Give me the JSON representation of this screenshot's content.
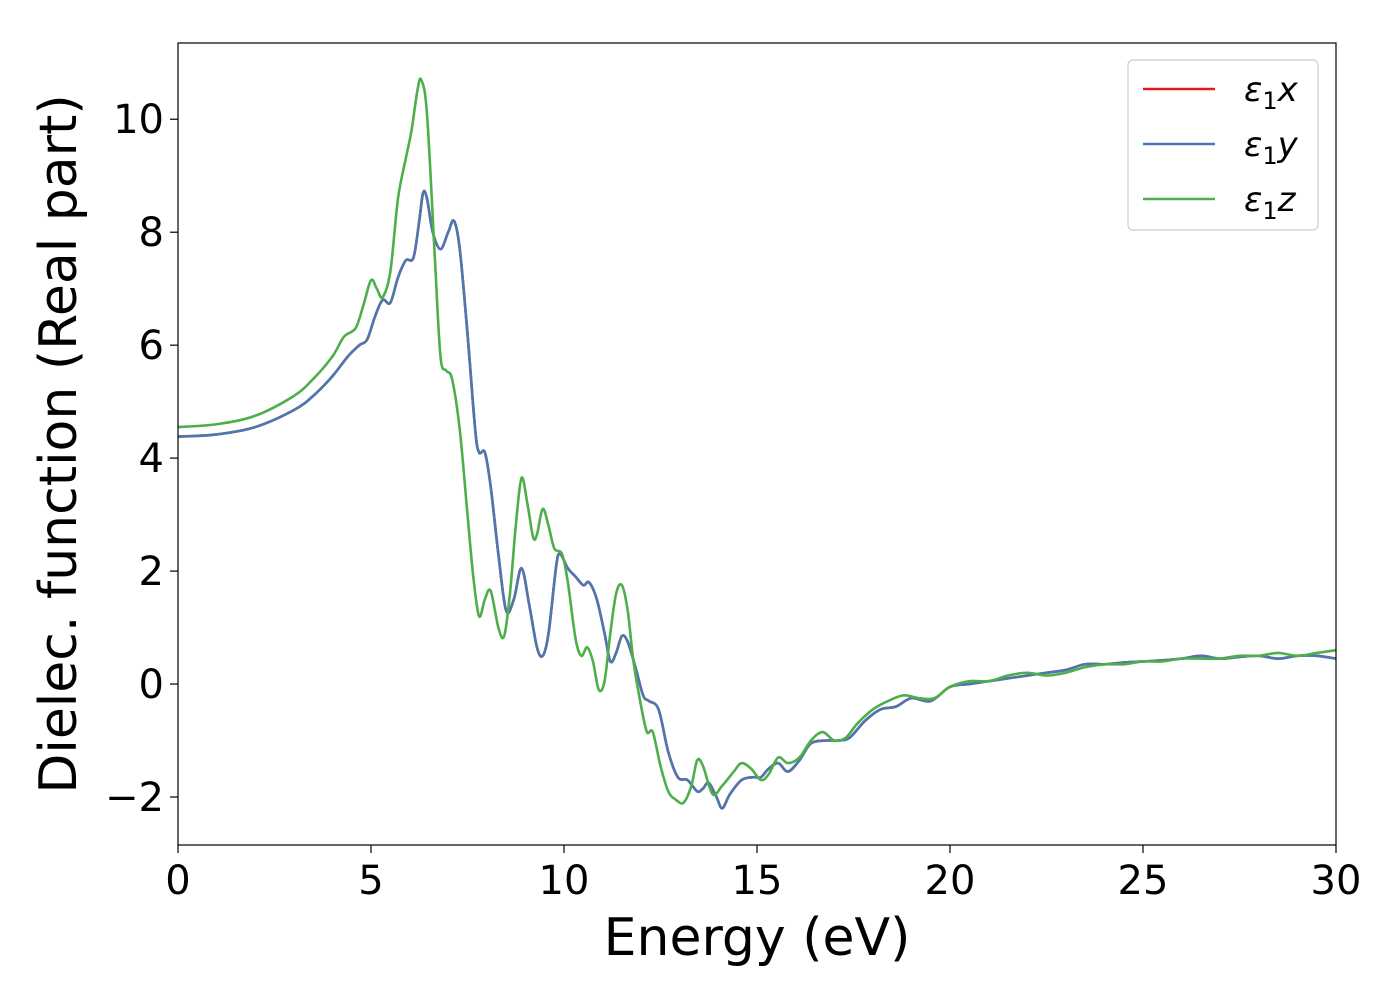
{
  "chart_data": {
    "type": "line",
    "title": "",
    "xlabel": "Energy (eV)",
    "ylabel": "Dielec. function (Real part)",
    "xlim": [
      0,
      30
    ],
    "ylim": [
      -2.85,
      11.35
    ],
    "xticks": [
      0,
      5,
      10,
      15,
      20,
      25,
      30
    ],
    "xtick_labels": [
      "0",
      "5",
      "10",
      "15",
      "20",
      "25",
      "30"
    ],
    "yticks": [
      -2,
      0,
      2,
      4,
      6,
      8,
      10
    ],
    "ytick_labels": [
      "−2",
      "0",
      "2",
      "4",
      "6",
      "8",
      "10"
    ],
    "grid": false,
    "legend_position": "top-right",
    "series": [
      {
        "name": "ε1x",
        "legend_base": "ε",
        "legend_sub": "1",
        "legend_var": "x",
        "color": "#e31a1c",
        "points": [
          [
            0,
            4.38
          ],
          [
            1,
            4.42
          ],
          [
            2,
            4.55
          ],
          [
            3,
            4.85
          ],
          [
            3.5,
            5.1
          ],
          [
            4,
            5.45
          ],
          [
            4.4,
            5.8
          ],
          [
            4.7,
            6.0
          ],
          [
            4.9,
            6.1
          ],
          [
            5.1,
            6.5
          ],
          [
            5.3,
            6.8
          ],
          [
            5.5,
            6.75
          ],
          [
            5.7,
            7.2
          ],
          [
            5.9,
            7.5
          ],
          [
            6.1,
            7.55
          ],
          [
            6.25,
            8.2
          ],
          [
            6.35,
            8.7
          ],
          [
            6.45,
            8.6
          ],
          [
            6.6,
            8.0
          ],
          [
            6.8,
            7.7
          ],
          [
            7.0,
            8.0
          ],
          [
            7.15,
            8.2
          ],
          [
            7.3,
            7.7
          ],
          [
            7.5,
            6.2
          ],
          [
            7.7,
            4.5
          ],
          [
            7.8,
            4.1
          ],
          [
            7.95,
            4.1
          ],
          [
            8.1,
            3.5
          ],
          [
            8.3,
            2.3
          ],
          [
            8.5,
            1.3
          ],
          [
            8.7,
            1.5
          ],
          [
            8.9,
            2.05
          ],
          [
            9.1,
            1.4
          ],
          [
            9.3,
            0.65
          ],
          [
            9.45,
            0.5
          ],
          [
            9.6,
            0.9
          ],
          [
            9.8,
            2.1
          ],
          [
            9.9,
            2.3
          ],
          [
            10.1,
            2.05
          ],
          [
            10.3,
            1.9
          ],
          [
            10.5,
            1.75
          ],
          [
            10.65,
            1.8
          ],
          [
            10.85,
            1.5
          ],
          [
            11.05,
            0.9
          ],
          [
            11.2,
            0.4
          ],
          [
            11.35,
            0.55
          ],
          [
            11.5,
            0.85
          ],
          [
            11.65,
            0.75
          ],
          [
            11.85,
            0.3
          ],
          [
            12.05,
            -0.2
          ],
          [
            12.2,
            -0.3
          ],
          [
            12.45,
            -0.45
          ],
          [
            12.7,
            -1.2
          ],
          [
            12.95,
            -1.65
          ],
          [
            13.2,
            -1.7
          ],
          [
            13.45,
            -1.9
          ],
          [
            13.6,
            -1.85
          ],
          [
            13.75,
            -1.75
          ],
          [
            13.95,
            -2.0
          ],
          [
            14.1,
            -2.2
          ],
          [
            14.3,
            -1.95
          ],
          [
            14.6,
            -1.7
          ],
          [
            14.9,
            -1.65
          ],
          [
            15.1,
            -1.65
          ],
          [
            15.3,
            -1.5
          ],
          [
            15.55,
            -1.4
          ],
          [
            15.8,
            -1.55
          ],
          [
            16.1,
            -1.35
          ],
          [
            16.4,
            -1.05
          ],
          [
            16.8,
            -1.0
          ],
          [
            17.1,
            -1.0
          ],
          [
            17.4,
            -0.95
          ],
          [
            17.8,
            -0.65
          ],
          [
            18.2,
            -0.45
          ],
          [
            18.6,
            -0.4
          ],
          [
            19.0,
            -0.25
          ],
          [
            19.5,
            -0.3
          ],
          [
            20.0,
            -0.05
          ],
          [
            20.5,
            0.0
          ],
          [
            21.0,
            0.05
          ],
          [
            21.5,
            0.1
          ],
          [
            22,
            0.15
          ],
          [
            22.5,
            0.2
          ],
          [
            23,
            0.25
          ],
          [
            23.5,
            0.35
          ],
          [
            24,
            0.35
          ],
          [
            24.5,
            0.38
          ],
          [
            25,
            0.4
          ],
          [
            25.5,
            0.42
          ],
          [
            26,
            0.45
          ],
          [
            26.5,
            0.5
          ],
          [
            27,
            0.45
          ],
          [
            27.5,
            0.48
          ],
          [
            28,
            0.5
          ],
          [
            28.5,
            0.45
          ],
          [
            29,
            0.5
          ],
          [
            29.5,
            0.5
          ],
          [
            30,
            0.45
          ]
        ]
      },
      {
        "name": "ε1y",
        "legend_base": "ε",
        "legend_sub": "1",
        "legend_var": "y",
        "color": "#4b78b0",
        "points": [
          [
            0,
            4.38
          ],
          [
            1,
            4.42
          ],
          [
            2,
            4.55
          ],
          [
            3,
            4.85
          ],
          [
            3.5,
            5.1
          ],
          [
            4,
            5.45
          ],
          [
            4.4,
            5.8
          ],
          [
            4.7,
            6.0
          ],
          [
            4.9,
            6.1
          ],
          [
            5.1,
            6.5
          ],
          [
            5.3,
            6.8
          ],
          [
            5.5,
            6.75
          ],
          [
            5.7,
            7.2
          ],
          [
            5.9,
            7.5
          ],
          [
            6.1,
            7.55
          ],
          [
            6.25,
            8.2
          ],
          [
            6.35,
            8.7
          ],
          [
            6.45,
            8.6
          ],
          [
            6.6,
            8.0
          ],
          [
            6.8,
            7.7
          ],
          [
            7.0,
            8.0
          ],
          [
            7.15,
            8.2
          ],
          [
            7.3,
            7.7
          ],
          [
            7.5,
            6.2
          ],
          [
            7.7,
            4.5
          ],
          [
            7.8,
            4.1
          ],
          [
            7.95,
            4.1
          ],
          [
            8.1,
            3.5
          ],
          [
            8.3,
            2.3
          ],
          [
            8.5,
            1.3
          ],
          [
            8.7,
            1.5
          ],
          [
            8.9,
            2.05
          ],
          [
            9.1,
            1.4
          ],
          [
            9.3,
            0.65
          ],
          [
            9.45,
            0.5
          ],
          [
            9.6,
            0.9
          ],
          [
            9.8,
            2.1
          ],
          [
            9.9,
            2.3
          ],
          [
            10.1,
            2.05
          ],
          [
            10.3,
            1.9
          ],
          [
            10.5,
            1.75
          ],
          [
            10.65,
            1.8
          ],
          [
            10.85,
            1.5
          ],
          [
            11.05,
            0.9
          ],
          [
            11.2,
            0.4
          ],
          [
            11.35,
            0.55
          ],
          [
            11.5,
            0.85
          ],
          [
            11.65,
            0.75
          ],
          [
            11.85,
            0.3
          ],
          [
            12.05,
            -0.2
          ],
          [
            12.2,
            -0.3
          ],
          [
            12.45,
            -0.45
          ],
          [
            12.7,
            -1.2
          ],
          [
            12.95,
            -1.65
          ],
          [
            13.2,
            -1.7
          ],
          [
            13.45,
            -1.9
          ],
          [
            13.6,
            -1.85
          ],
          [
            13.75,
            -1.75
          ],
          [
            13.95,
            -2.0
          ],
          [
            14.1,
            -2.2
          ],
          [
            14.3,
            -1.95
          ],
          [
            14.6,
            -1.7
          ],
          [
            14.9,
            -1.65
          ],
          [
            15.1,
            -1.65
          ],
          [
            15.3,
            -1.5
          ],
          [
            15.55,
            -1.4
          ],
          [
            15.8,
            -1.55
          ],
          [
            16.1,
            -1.35
          ],
          [
            16.4,
            -1.05
          ],
          [
            16.8,
            -1.0
          ],
          [
            17.1,
            -1.0
          ],
          [
            17.4,
            -0.95
          ],
          [
            17.8,
            -0.65
          ],
          [
            18.2,
            -0.45
          ],
          [
            18.6,
            -0.4
          ],
          [
            19.0,
            -0.25
          ],
          [
            19.5,
            -0.3
          ],
          [
            20.0,
            -0.05
          ],
          [
            20.5,
            0.0
          ],
          [
            21.0,
            0.05
          ],
          [
            21.5,
            0.1
          ],
          [
            22,
            0.15
          ],
          [
            22.5,
            0.2
          ],
          [
            23,
            0.25
          ],
          [
            23.5,
            0.35
          ],
          [
            24,
            0.35
          ],
          [
            24.5,
            0.38
          ],
          [
            25,
            0.4
          ],
          [
            25.5,
            0.42
          ],
          [
            26,
            0.45
          ],
          [
            26.5,
            0.5
          ],
          [
            27,
            0.45
          ],
          [
            27.5,
            0.48
          ],
          [
            28,
            0.5
          ],
          [
            28.5,
            0.45
          ],
          [
            29,
            0.5
          ],
          [
            29.5,
            0.5
          ],
          [
            30,
            0.45
          ]
        ]
      },
      {
        "name": "ε1z",
        "legend_base": "ε",
        "legend_sub": "1",
        "legend_var": "z",
        "color": "#4daf4a",
        "points": [
          [
            0,
            4.55
          ],
          [
            1,
            4.6
          ],
          [
            2,
            4.75
          ],
          [
            3,
            5.1
          ],
          [
            3.5,
            5.4
          ],
          [
            4,
            5.8
          ],
          [
            4.3,
            6.15
          ],
          [
            4.6,
            6.3
          ],
          [
            4.8,
            6.7
          ],
          [
            5.0,
            7.15
          ],
          [
            5.15,
            7.0
          ],
          [
            5.3,
            6.85
          ],
          [
            5.5,
            7.3
          ],
          [
            5.7,
            8.6
          ],
          [
            5.9,
            9.3
          ],
          [
            6.05,
            9.8
          ],
          [
            6.2,
            10.5
          ],
          [
            6.3,
            10.7
          ],
          [
            6.45,
            10.1
          ],
          [
            6.65,
            7.6
          ],
          [
            6.8,
            5.8
          ],
          [
            6.95,
            5.55
          ],
          [
            7.1,
            5.4
          ],
          [
            7.3,
            4.5
          ],
          [
            7.5,
            3.0
          ],
          [
            7.65,
            1.9
          ],
          [
            7.8,
            1.2
          ],
          [
            7.95,
            1.5
          ],
          [
            8.1,
            1.65
          ],
          [
            8.3,
            1.0
          ],
          [
            8.45,
            0.85
          ],
          [
            8.6,
            1.6
          ],
          [
            8.75,
            2.8
          ],
          [
            8.9,
            3.65
          ],
          [
            9.05,
            3.2
          ],
          [
            9.2,
            2.6
          ],
          [
            9.3,
            2.65
          ],
          [
            9.45,
            3.1
          ],
          [
            9.6,
            2.8
          ],
          [
            9.75,
            2.4
          ],
          [
            9.95,
            2.3
          ],
          [
            10.1,
            1.8
          ],
          [
            10.3,
            0.8
          ],
          [
            10.45,
            0.5
          ],
          [
            10.6,
            0.65
          ],
          [
            10.75,
            0.4
          ],
          [
            10.9,
            -0.1
          ],
          [
            11.05,
            0.05
          ],
          [
            11.2,
            0.9
          ],
          [
            11.35,
            1.6
          ],
          [
            11.5,
            1.75
          ],
          [
            11.65,
            1.3
          ],
          [
            11.8,
            0.4
          ],
          [
            12.0,
            -0.4
          ],
          [
            12.15,
            -0.85
          ],
          [
            12.3,
            -0.85
          ],
          [
            12.5,
            -1.45
          ],
          [
            12.7,
            -1.9
          ],
          [
            12.9,
            -2.05
          ],
          [
            13.1,
            -2.1
          ],
          [
            13.3,
            -1.8
          ],
          [
            13.45,
            -1.35
          ],
          [
            13.6,
            -1.45
          ],
          [
            13.85,
            -1.95
          ],
          [
            14.1,
            -1.8
          ],
          [
            14.4,
            -1.55
          ],
          [
            14.6,
            -1.4
          ],
          [
            14.85,
            -1.5
          ],
          [
            15.1,
            -1.7
          ],
          [
            15.3,
            -1.6
          ],
          [
            15.55,
            -1.3
          ],
          [
            15.8,
            -1.4
          ],
          [
            16.1,
            -1.3
          ],
          [
            16.4,
            -1.0
          ],
          [
            16.7,
            -0.85
          ],
          [
            17.0,
            -1.0
          ],
          [
            17.3,
            -0.95
          ],
          [
            17.6,
            -0.7
          ],
          [
            18.0,
            -0.45
          ],
          [
            18.4,
            -0.3
          ],
          [
            18.8,
            -0.2
          ],
          [
            19.2,
            -0.25
          ],
          [
            19.6,
            -0.25
          ],
          [
            20.0,
            -0.05
          ],
          [
            20.5,
            0.05
          ],
          [
            21.0,
            0.05
          ],
          [
            21.5,
            0.15
          ],
          [
            22.0,
            0.2
          ],
          [
            22.5,
            0.15
          ],
          [
            23,
            0.2
          ],
          [
            23.5,
            0.3
          ],
          [
            24,
            0.35
          ],
          [
            24.5,
            0.35
          ],
          [
            25,
            0.4
          ],
          [
            25.5,
            0.4
          ],
          [
            26,
            0.45
          ],
          [
            26.5,
            0.45
          ],
          [
            27,
            0.45
          ],
          [
            27.5,
            0.5
          ],
          [
            28,
            0.5
          ],
          [
            28.5,
            0.55
          ],
          [
            29,
            0.5
          ],
          [
            29.5,
            0.55
          ],
          [
            30,
            0.6
          ]
        ]
      }
    ]
  }
}
